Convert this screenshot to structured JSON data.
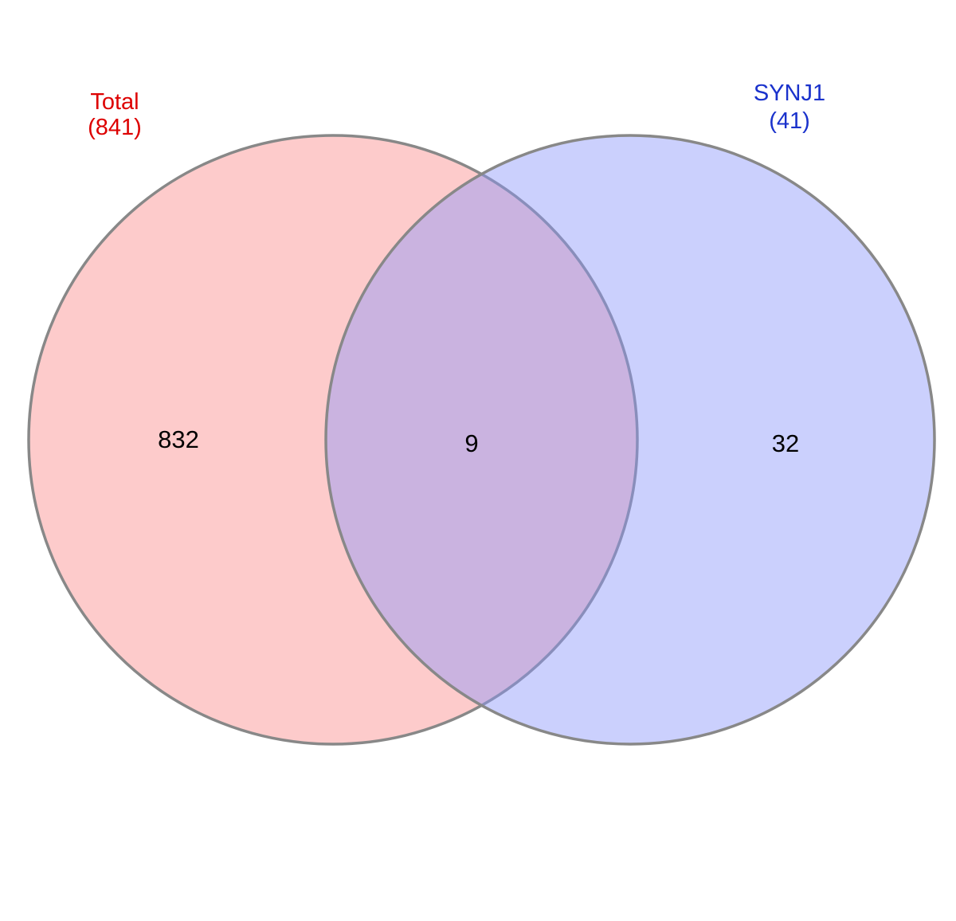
{
  "chart_data": {
    "type": "venn",
    "sets": [
      {
        "key": "left",
        "name": "Total",
        "total_label": "(841)",
        "total": 841,
        "fill_color": "#fa8c8c",
        "label_color": "#dd0000"
      },
      {
        "key": "right",
        "name": "SYNJ1",
        "total_label": "(41)",
        "total": 41,
        "fill_color": "#8c96fa",
        "label_color": "#1a32cc"
      }
    ],
    "regions": {
      "left_only": "832",
      "intersection": "9",
      "right_only": "32"
    },
    "outline_color": "#888888"
  }
}
